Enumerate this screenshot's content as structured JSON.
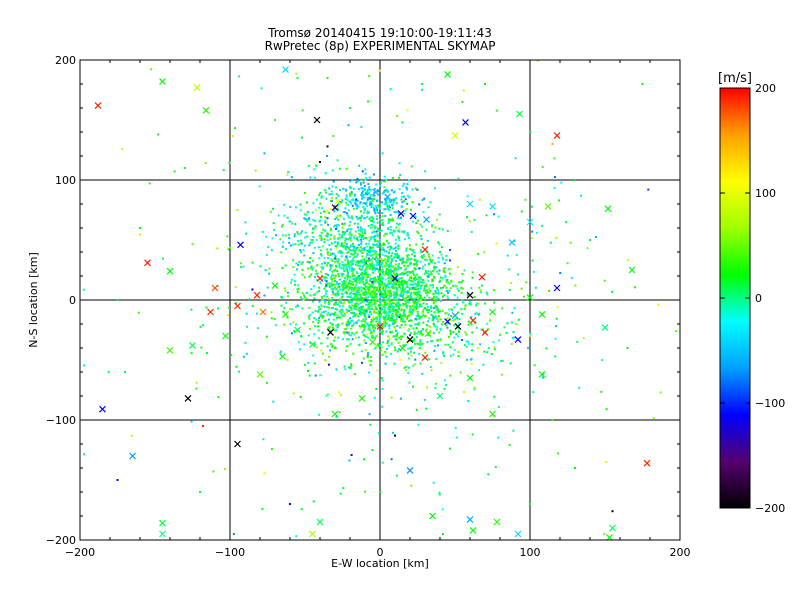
{
  "chart_data": {
    "type": "scatter",
    "title": "Tromsø 20140415 19:10:00-19:11:43",
    "subtitle": "RwPretec (8p) EXPERIMENTAL SKYMAP",
    "xlabel": "E-W location [km]",
    "ylabel": "N-S location [km]",
    "xlim": [
      -200,
      200
    ],
    "ylim": [
      -200,
      200
    ],
    "x_ticks": [
      -200,
      -100,
      0,
      100,
      200
    ],
    "y_ticks": [
      -200,
      -100,
      0,
      100,
      200
    ],
    "x_tick_labels": [
      "−200",
      "−100",
      "0",
      "100",
      "200"
    ],
    "y_tick_labels": [
      "−200",
      "−100",
      "0",
      "100",
      "200"
    ],
    "grid": true,
    "marker_types": [
      "dot",
      "x"
    ],
    "colorbar": {
      "label": "[m/s]",
      "range": [
        -200,
        200
      ],
      "ticks": [
        -200,
        -100,
        0,
        100,
        200
      ],
      "tick_labels": [
        "−200",
        "−100",
        "0",
        "100",
        "200"
      ],
      "colors": [
        "#000000",
        "#550070",
        "#0000ff",
        "#00a0ff",
        "#00ffff",
        "#00ff00",
        "#a0ff00",
        "#ffff00",
        "#ffa000",
        "#ff0000"
      ]
    },
    "points": [
      {
        "x": -188,
        "y": 162,
        "v": 190,
        "m": "x"
      },
      {
        "x": -145,
        "y": 182,
        "v": 20,
        "m": "x"
      },
      {
        "x": -122,
        "y": 177,
        "v": 80,
        "m": "x"
      },
      {
        "x": -116,
        "y": 158,
        "v": 30,
        "m": "x"
      },
      {
        "x": -172,
        "y": 126,
        "v": 90,
        "m": "dot"
      },
      {
        "x": -63,
        "y": 192,
        "v": -40,
        "m": "x"
      },
      {
        "x": -55,
        "y": 185,
        "v": 10,
        "m": "dot"
      },
      {
        "x": -42,
        "y": 150,
        "v": -200,
        "m": "x"
      },
      {
        "x": -35,
        "y": 128,
        "v": -190,
        "m": "dot"
      },
      {
        "x": 45,
        "y": 188,
        "v": 20,
        "m": "x"
      },
      {
        "x": 55,
        "y": 165,
        "v": 30,
        "m": "dot"
      },
      {
        "x": 57,
        "y": 148,
        "v": -110,
        "m": "x"
      },
      {
        "x": 50,
        "y": 137,
        "v": 90,
        "m": "x"
      },
      {
        "x": 118,
        "y": 137,
        "v": 190,
        "m": "x"
      },
      {
        "x": 115,
        "y": 130,
        "v": 150,
        "m": "dot"
      },
      {
        "x": 93,
        "y": 155,
        "v": 10,
        "m": "x"
      },
      {
        "x": -40,
        "y": 115,
        "v": -190,
        "m": "dot"
      },
      {
        "x": -95,
        "y": 75,
        "v": 70,
        "m": "dot"
      },
      {
        "x": -93,
        "y": 46,
        "v": -110,
        "m": "x"
      },
      {
        "x": -30,
        "y": 77,
        "v": -180,
        "m": "x"
      },
      {
        "x": -28,
        "y": 82,
        "v": 100,
        "m": "x"
      },
      {
        "x": -3,
        "y": 90,
        "v": -60,
        "m": "x"
      },
      {
        "x": 5,
        "y": 86,
        "v": -60,
        "m": "x"
      },
      {
        "x": 14,
        "y": 72,
        "v": -130,
        "m": "x"
      },
      {
        "x": 22,
        "y": 70,
        "v": -110,
        "m": "x"
      },
      {
        "x": 31,
        "y": 67,
        "v": -60,
        "m": "x"
      },
      {
        "x": 60,
        "y": 80,
        "v": -40,
        "m": "x"
      },
      {
        "x": 75,
        "y": 78,
        "v": -30,
        "m": "x"
      },
      {
        "x": 88,
        "y": 48,
        "v": -50,
        "m": "x"
      },
      {
        "x": 100,
        "y": 65,
        "v": -30,
        "m": "x"
      },
      {
        "x": 112,
        "y": 78,
        "v": 50,
        "m": "x"
      },
      {
        "x": 118,
        "y": 10,
        "v": -120,
        "m": "x"
      },
      {
        "x": 152,
        "y": 76,
        "v": 20,
        "m": "x"
      },
      {
        "x": 168,
        "y": 25,
        "v": 20,
        "m": "x"
      },
      {
        "x": -155,
        "y": 31,
        "v": 190,
        "m": "x"
      },
      {
        "x": -140,
        "y": 24,
        "v": 20,
        "m": "x"
      },
      {
        "x": -110,
        "y": 10,
        "v": 180,
        "m": "x"
      },
      {
        "x": -113,
        "y": -10,
        "v": 190,
        "m": "x"
      },
      {
        "x": -95,
        "y": -5,
        "v": 190,
        "m": "x"
      },
      {
        "x": -82,
        "y": 4,
        "v": 190,
        "m": "x"
      },
      {
        "x": -78,
        "y": -10,
        "v": 170,
        "m": "x"
      },
      {
        "x": -70,
        "y": 12,
        "v": 20,
        "m": "x"
      },
      {
        "x": -63,
        "y": -12,
        "v": 30,
        "m": "x"
      },
      {
        "x": -55,
        "y": -25,
        "v": 10,
        "m": "x"
      },
      {
        "x": -45,
        "y": -37,
        "v": 10,
        "m": "x"
      },
      {
        "x": -40,
        "y": 18,
        "v": 190,
        "m": "x"
      },
      {
        "x": -33,
        "y": -27,
        "v": -200,
        "m": "x"
      },
      {
        "x": -22,
        "y": 12,
        "v": 20,
        "m": "x"
      },
      {
        "x": -8,
        "y": 28,
        "v": 40,
        "m": "x"
      },
      {
        "x": 0,
        "y": -22,
        "v": 190,
        "m": "x"
      },
      {
        "x": 10,
        "y": 18,
        "v": -120,
        "m": "x"
      },
      {
        "x": 20,
        "y": -33,
        "v": -200,
        "m": "x"
      },
      {
        "x": 30,
        "y": -48,
        "v": 190,
        "m": "x"
      },
      {
        "x": 32,
        "y": -28,
        "v": 30,
        "m": "x"
      },
      {
        "x": 45,
        "y": -18,
        "v": -120,
        "m": "x"
      },
      {
        "x": 50,
        "y": -13,
        "v": -60,
        "m": "x"
      },
      {
        "x": 52,
        "y": -22,
        "v": -200,
        "m": "x"
      },
      {
        "x": 60,
        "y": 4,
        "v": -200,
        "m": "x"
      },
      {
        "x": 62,
        "y": -17,
        "v": 190,
        "m": "x"
      },
      {
        "x": 68,
        "y": 19,
        "v": 190,
        "m": "x"
      },
      {
        "x": 70,
        "y": -27,
        "v": 190,
        "m": "x"
      },
      {
        "x": 75,
        "y": -10,
        "v": 20,
        "m": "x"
      },
      {
        "x": 92,
        "y": -33,
        "v": -110,
        "m": "x"
      },
      {
        "x": 108,
        "y": -12,
        "v": 20,
        "m": "x"
      },
      {
        "x": 150,
        "y": -23,
        "v": 0,
        "m": "x"
      },
      {
        "x": 30,
        "y": 42,
        "v": 190,
        "m": "x"
      },
      {
        "x": -118,
        "y": -21,
        "v": 0,
        "m": "dot"
      },
      {
        "x": -140,
        "y": -42,
        "v": 40,
        "m": "x"
      },
      {
        "x": -125,
        "y": -38,
        "v": 10,
        "m": "x"
      },
      {
        "x": -103,
        "y": -30,
        "v": 20,
        "m": "x"
      },
      {
        "x": -65,
        "y": -47,
        "v": 20,
        "m": "x"
      },
      {
        "x": -80,
        "y": -62,
        "v": 50,
        "m": "x"
      },
      {
        "x": -128,
        "y": -82,
        "v": -200,
        "m": "x"
      },
      {
        "x": -185,
        "y": -91,
        "v": -110,
        "m": "x"
      },
      {
        "x": -118,
        "y": -105,
        "v": 190,
        "m": "dot"
      },
      {
        "x": -95,
        "y": -120,
        "v": -200,
        "m": "x"
      },
      {
        "x": -30,
        "y": -95,
        "v": 20,
        "m": "x"
      },
      {
        "x": -12,
        "y": -82,
        "v": 30,
        "m": "x"
      },
      {
        "x": 10,
        "y": -113,
        "v": -200,
        "m": "dot"
      },
      {
        "x": 20,
        "y": -142,
        "v": -70,
        "m": "x"
      },
      {
        "x": 40,
        "y": -80,
        "v": 0,
        "m": "x"
      },
      {
        "x": 60,
        "y": -65,
        "v": 20,
        "m": "x"
      },
      {
        "x": 75,
        "y": -95,
        "v": 30,
        "m": "x"
      },
      {
        "x": 108,
        "y": -62,
        "v": 20,
        "m": "x"
      },
      {
        "x": 178,
        "y": -136,
        "v": 190,
        "m": "x"
      },
      {
        "x": -165,
        "y": -130,
        "v": -70,
        "m": "x"
      },
      {
        "x": -145,
        "y": -186,
        "v": 10,
        "m": "x"
      },
      {
        "x": -145,
        "y": -195,
        "v": 0,
        "m": "x"
      },
      {
        "x": -60,
        "y": -170,
        "v": -120,
        "m": "dot"
      },
      {
        "x": -40,
        "y": -185,
        "v": 10,
        "m": "x"
      },
      {
        "x": -45,
        "y": -195,
        "v": 70,
        "m": "x"
      },
      {
        "x": 35,
        "y": -180,
        "v": 20,
        "m": "x"
      },
      {
        "x": 60,
        "y": -183,
        "v": -60,
        "m": "x"
      },
      {
        "x": 62,
        "y": -192,
        "v": 20,
        "m": "x"
      },
      {
        "x": 78,
        "y": -185,
        "v": 30,
        "m": "x"
      },
      {
        "x": 92,
        "y": -195,
        "v": -40,
        "m": "x"
      },
      {
        "x": 155,
        "y": -190,
        "v": 10,
        "m": "x"
      },
      {
        "x": 153,
        "y": -198,
        "v": 20,
        "m": "x"
      },
      {
        "x": 155,
        "y": -176,
        "v": -200,
        "m": "dot"
      },
      {
        "x": 115,
        "y": -100,
        "v": 40,
        "m": "dot"
      },
      {
        "x": 42,
        "y": -195,
        "v": 20,
        "m": "dot"
      },
      {
        "x": -5,
        "y": -35,
        "v": 30,
        "m": "x"
      },
      {
        "x": 15,
        "y": -40,
        "v": 20,
        "m": "x"
      },
      {
        "x": 100,
        "y": 2,
        "v": 20,
        "m": "x"
      },
      {
        "x": -35,
        "y": 185,
        "v": 30,
        "m": "dot"
      },
      {
        "x": 28,
        "y": 180,
        "v": 10,
        "m": "dot"
      },
      {
        "x": 70,
        "y": 180,
        "v": 20,
        "m": "dot"
      },
      {
        "x": -20,
        "y": 160,
        "v": 10,
        "m": "dot"
      },
      {
        "x": 15,
        "y": 148,
        "v": 20,
        "m": "dot"
      },
      {
        "x": 100,
        "y": 140,
        "v": 10,
        "m": "dot"
      },
      {
        "x": -70,
        "y": 150,
        "v": 40,
        "m": "dot"
      },
      {
        "x": -130,
        "y": 110,
        "v": 10,
        "m": "dot"
      },
      {
        "x": 130,
        "y": 100,
        "v": 20,
        "m": "dot"
      },
      {
        "x": 140,
        "y": 50,
        "v": 10,
        "m": "dot"
      },
      {
        "x": -160,
        "y": 60,
        "v": 20,
        "m": "dot"
      },
      {
        "x": -175,
        "y": 0,
        "v": 10,
        "m": "dot"
      },
      {
        "x": 165,
        "y": -40,
        "v": 20,
        "m": "dot"
      },
      {
        "x": -170,
        "y": -60,
        "v": 10,
        "m": "dot"
      },
      {
        "x": 130,
        "y": -140,
        "v": 20,
        "m": "dot"
      },
      {
        "x": -120,
        "y": -160,
        "v": 10,
        "m": "dot"
      },
      {
        "x": -175,
        "y": -150,
        "v": -110,
        "m": "dot"
      },
      {
        "x": 0,
        "y": -160,
        "v": 20,
        "m": "dot"
      },
      {
        "x": 100,
        "y": -170,
        "v": 10,
        "m": "dot"
      },
      {
        "x": 175,
        "y": 180,
        "v": 20,
        "m": "dot"
      }
    ],
    "cloud": [
      {
        "cx": 0,
        "cy": 10,
        "sx": 24,
        "sy": 20,
        "n": 1500,
        "vmean": 10,
        "vsd": 30
      },
      {
        "cx": -5,
        "cy": 85,
        "sx": 14,
        "sy": 9,
        "n": 170,
        "vmean": -45,
        "vsd": 18
      },
      {
        "cx": -20,
        "cy": 55,
        "sx": 24,
        "sy": 22,
        "n": 600,
        "vmean": -10,
        "vsd": 30
      },
      {
        "cx": 10,
        "cy": -15,
        "sx": 35,
        "sy": 22,
        "n": 700,
        "vmean": 10,
        "vsd": 35
      },
      {
        "cx": 0,
        "cy": 0,
        "sx": 80,
        "sy": 85,
        "n": 400,
        "vmean": 10,
        "vsd": 45
      }
    ]
  }
}
